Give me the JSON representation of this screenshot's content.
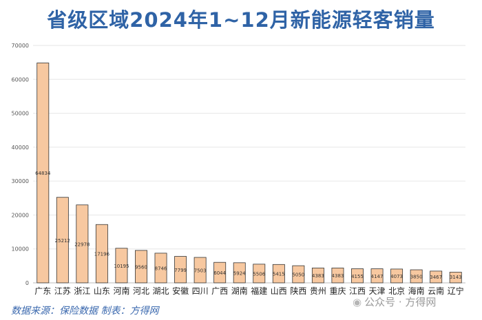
{
  "chart_data": {
    "type": "bar",
    "title": "省级区域2024年1~12月新能源轻客销量",
    "categories": [
      "广东",
      "江苏",
      "浙江",
      "山东",
      "河南",
      "河北",
      "湖北",
      "安徽",
      "四川",
      "广西",
      "湖南",
      "福建",
      "山西",
      "陕西",
      "贵州",
      "重庆",
      "江西",
      "天津",
      "北京",
      "海南",
      "云南",
      "辽宁"
    ],
    "values": [
      64834,
      25212,
      22978,
      17196,
      10195,
      9560,
      8746,
      7799,
      7503,
      6044,
      5924,
      5506,
      5415,
      5050,
      4383,
      4383,
      4155,
      4147,
      4073,
      3850,
      3467,
      3143
    ],
    "xlabel": "",
    "ylabel": "",
    "ylim": [
      0,
      70000
    ],
    "yticks": [
      0,
      10000,
      20000,
      30000,
      40000,
      50000,
      60000,
      70000
    ],
    "grid": true,
    "bar_color": "#f7c8a0",
    "bar_edge_color": "#333333",
    "grid_color": "#e6e6e6"
  },
  "footer": {
    "source_text": "数据来源：保险数据  制表：方得网"
  },
  "watermark": {
    "icon": "wechat-icon",
    "text": "公众号 · 方得网"
  },
  "colors": {
    "title": "#2f63a6",
    "footer": "#3a68ae"
  }
}
